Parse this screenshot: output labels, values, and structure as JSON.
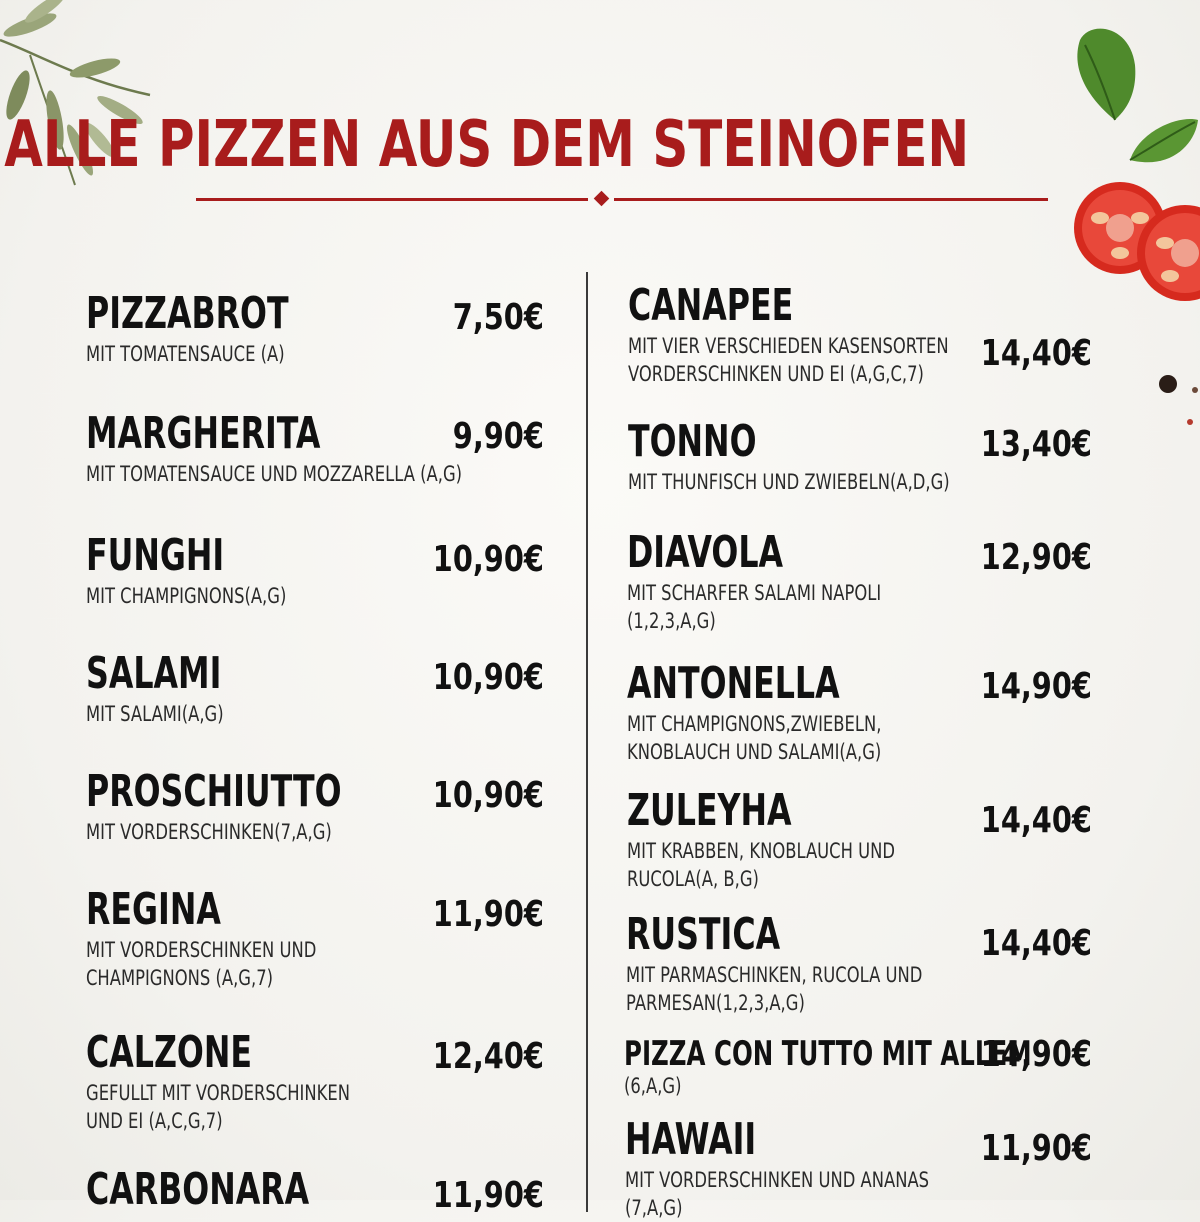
{
  "menu": {
    "title": "ALLE PIZZEN AUS DEM STEINOFEN",
    "left": [
      {
        "name": "PIZZABROT",
        "desc": [
          "MIT TOMATENSAUCE (A)"
        ],
        "price": "7,50€"
      },
      {
        "name": "MARGHERITA",
        "desc": [
          "MIT TOMATENSAUCE UND MOZZARELLA (A,G)"
        ],
        "price": "9,90€"
      },
      {
        "name": "FUNGHI",
        "desc": [
          "MIT CHAMPIGNONS(A,G)"
        ],
        "price": "10,90€"
      },
      {
        "name": "SALAMI",
        "desc": [
          "MIT SALAMI(A,G)"
        ],
        "price": "10,90€"
      },
      {
        "name": "PROSCHIUTTO",
        "desc": [
          "MIT VORDERSCHINKEN(7,A,G)"
        ],
        "price": "10,90€"
      },
      {
        "name": "REGINA",
        "desc": [
          "MIT VORDERSCHINKEN UND",
          "CHAMPIGNONS (A,G,7)"
        ],
        "price": "11,90€"
      },
      {
        "name": "CALZONE",
        "desc": [
          "GEFULLT MIT VORDERSCHINKEN",
          "UND EI (A,C,G,7)"
        ],
        "price": "12,40€"
      },
      {
        "name": "CARBONARA",
        "desc": [],
        "price": "11,90€"
      }
    ],
    "right": [
      {
        "name": "CANAPEE",
        "desc": [
          "MIT VIER VERSCHIEDEN KASENSORTEN",
          "VORDERSCHINKEN UND EI (A,G,C,7)"
        ],
        "price": "14,40€"
      },
      {
        "name": "TONNO",
        "desc": [
          "MIT THUNFISCH UND ZWIEBELN(A,D,G)"
        ],
        "price": "13,40€"
      },
      {
        "name": "DIAVOLA",
        "desc": [
          "MIT SCHARFER SALAMI NAPOLI",
          "(1,2,3,A,G)"
        ],
        "price": "12,90€"
      },
      {
        "name": "ANTONELLA",
        "desc": [
          "MIT CHAMPIGNONS,ZWIEBELN,",
          "KNOBLAUCH UND SALAMI(A,G)"
        ],
        "price": "14,90€"
      },
      {
        "name": "ZULEYHA",
        "desc": [
          "MIT KRABBEN, KNOBLAUCH UND",
          "RUCOLA(A, B,G)"
        ],
        "price": "14,40€"
      },
      {
        "name": "RUSTICA",
        "desc": [
          "MIT PARMASCHINKEN, RUCOLA UND",
          "PARMESAN(1,2,3,A,G)"
        ],
        "price": "14,40€"
      },
      {
        "name": "PIZZA CON TUTTO MIT ALLEM",
        "desc": [
          "(6,A,G)"
        ],
        "price": "14,90€"
      },
      {
        "name": "HAWAII",
        "desc": [
          "MIT VORDERSCHINKEN UND ANANAS",
          "(7,A,G)"
        ],
        "price": "11,90€"
      }
    ]
  },
  "colors": {
    "accent": "#a81c1c",
    "text": "#111111",
    "background": "#f5f4f0"
  },
  "decorations": [
    "olive-branch-icon",
    "basil-leaf-icon",
    "tomato-icon",
    "peppercorn-icon"
  ]
}
